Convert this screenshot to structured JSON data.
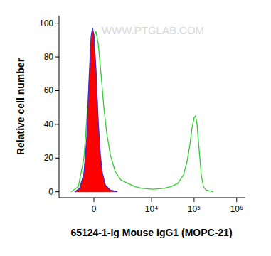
{
  "chart_data": {
    "type": "line",
    "log": "x",
    "watermark": "WWW.PTGLAB.COM",
    "x_label": "65124-1-Ig Mouse IgG1 (MOPC-21)",
    "y_label": "Relative cell number",
    "xlim": [
      -2850,
      1600000
    ],
    "xticks": [
      0,
      {
        "value": 10000,
        "label": "10⁴"
      },
      {
        "value": 100000,
        "label": "10⁵"
      },
      {
        "value": 1000000,
        "label": "10⁶"
      }
    ],
    "ylim": [
      -3.5,
      104.5
    ],
    "yticks": [
      0,
      20,
      40,
      60,
      80,
      100
    ],
    "grid": false,
    "series": [
      {
        "type": "line",
        "color": "#33cc33",
        "x": [
          -1386,
          -842,
          -499,
          -277,
          -137,
          0,
          102,
          206,
          349,
          499,
          663,
          889,
          1264,
          1801,
          2735,
          4071,
          6018,
          10750,
          19160,
          28140,
          41370,
          56290,
          68230,
          79560,
          89380,
          100300,
          108240,
          116900,
          131100,
          147200,
          165200,
          192800,
          283200
        ],
        "values": [
          0,
          3,
          20,
          55,
          82,
          92,
          95,
          88,
          70,
          50,
          35,
          22,
          12,
          7,
          5,
          3,
          2,
          1.5,
          2,
          3,
          5,
          10,
          18,
          28,
          38,
          44,
          45,
          40,
          25,
          10,
          3,
          1,
          0
        ]
      },
      {
        "type": "area",
        "color": "#ff0000",
        "x": [
          -1093,
          -750,
          -499,
          -349,
          -241,
          -137,
          -68,
          0,
          102,
          206,
          313,
          423,
          580,
          889,
          1451
        ],
        "values": [
          0,
          2,
          10,
          30,
          60,
          88,
          96,
          92,
          70,
          40,
          20,
          10,
          4,
          1,
          0
        ]
      },
      {
        "type": "line",
        "color": "#3a2fd0",
        "x": [
          -1093,
          -750,
          -499,
          -349,
          -241,
          -137,
          -68,
          0,
          102,
          206,
          313,
          423,
          580,
          889,
          1451
        ],
        "values": [
          0,
          2,
          11,
          32,
          65,
          92,
          97,
          93,
          72,
          42,
          22,
          11,
          4,
          1,
          0
        ]
      }
    ]
  }
}
